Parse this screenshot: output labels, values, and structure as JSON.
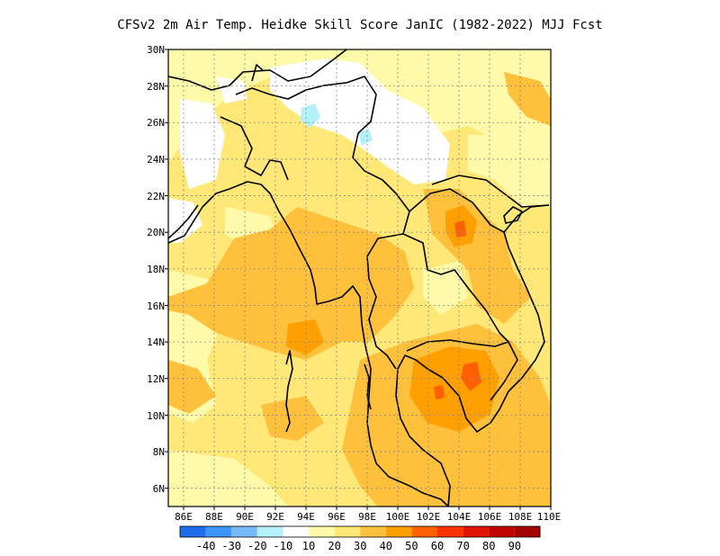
{
  "title": "CFSv2  2m Air Temp. Heidke Skill Score JanIC (1982-2022) MJJ Fcst",
  "lat_labels": [
    "30N",
    "28N",
    "26N",
    "24N",
    "22N",
    "20N",
    "18N",
    "16N",
    "14N",
    "12N",
    "10N",
    "8N",
    "6N"
  ],
  "lon_labels": [
    "86E",
    "88E",
    "90E",
    "92E",
    "94E",
    "96E",
    "98E",
    "100E",
    "102E",
    "104E",
    "106E",
    "108E",
    "110E"
  ],
  "colorbar": {
    "labels": [
      "-40",
      "-30",
      "-20",
      "-10",
      "10",
      "20",
      "30",
      "40",
      "50",
      "60",
      "70",
      "80",
      "90"
    ],
    "colors": [
      "#1e6eeb",
      "#3c96f5",
      "#78b9fa",
      "#b4f0fa",
      "#ffffff",
      "#fffaaa",
      "#ffe878",
      "#ffc03c",
      "#ffa000",
      "#ff6000",
      "#ff3200",
      "#e11400",
      "#c00000",
      "#a50000"
    ]
  },
  "map": {
    "lon_range": [
      85,
      110
    ],
    "lat_range": [
      5,
      30
    ],
    "background_color": "#ffe878"
  }
}
